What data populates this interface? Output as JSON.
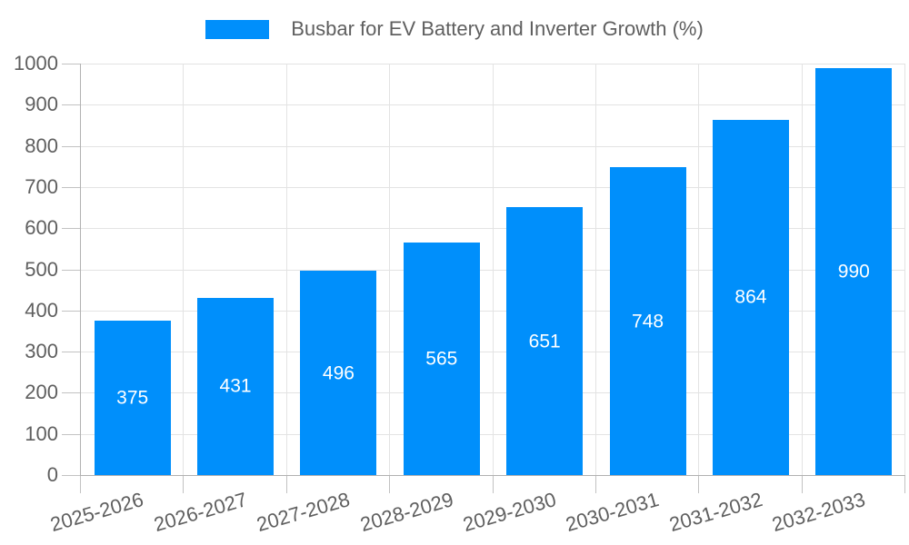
{
  "legend": {
    "label": "Busbar for EV Battery and Inverter Growth (%)"
  },
  "chart_data": {
    "type": "bar",
    "title": "Busbar for EV Battery and Inverter Growth (%)",
    "categories": [
      "2025-2026",
      "2026-2027",
      "2027-2028",
      "2028-2029",
      "2029-2030",
      "2030-2031",
      "2031-2032",
      "2032-2033"
    ],
    "values": [
      375,
      431,
      496,
      565,
      651,
      748,
      864,
      990
    ],
    "yticks": [
      0,
      100,
      200,
      300,
      400,
      500,
      600,
      700,
      800,
      900,
      1000
    ],
    "ylim": [
      0,
      1000
    ],
    "xlabel": "",
    "ylabel": "",
    "grid": true,
    "legend_position": "top",
    "data_label_position": "bar-center",
    "colors": {
      "bar": "#008FFB",
      "bar_label": "#FFFFFF",
      "axis_text": "#5F5F5F",
      "grid_line": "#E3E3E3",
      "axis_line": "#B1B1B1",
      "tick": "#C2C2C2",
      "background": "#FFFFFF"
    }
  }
}
